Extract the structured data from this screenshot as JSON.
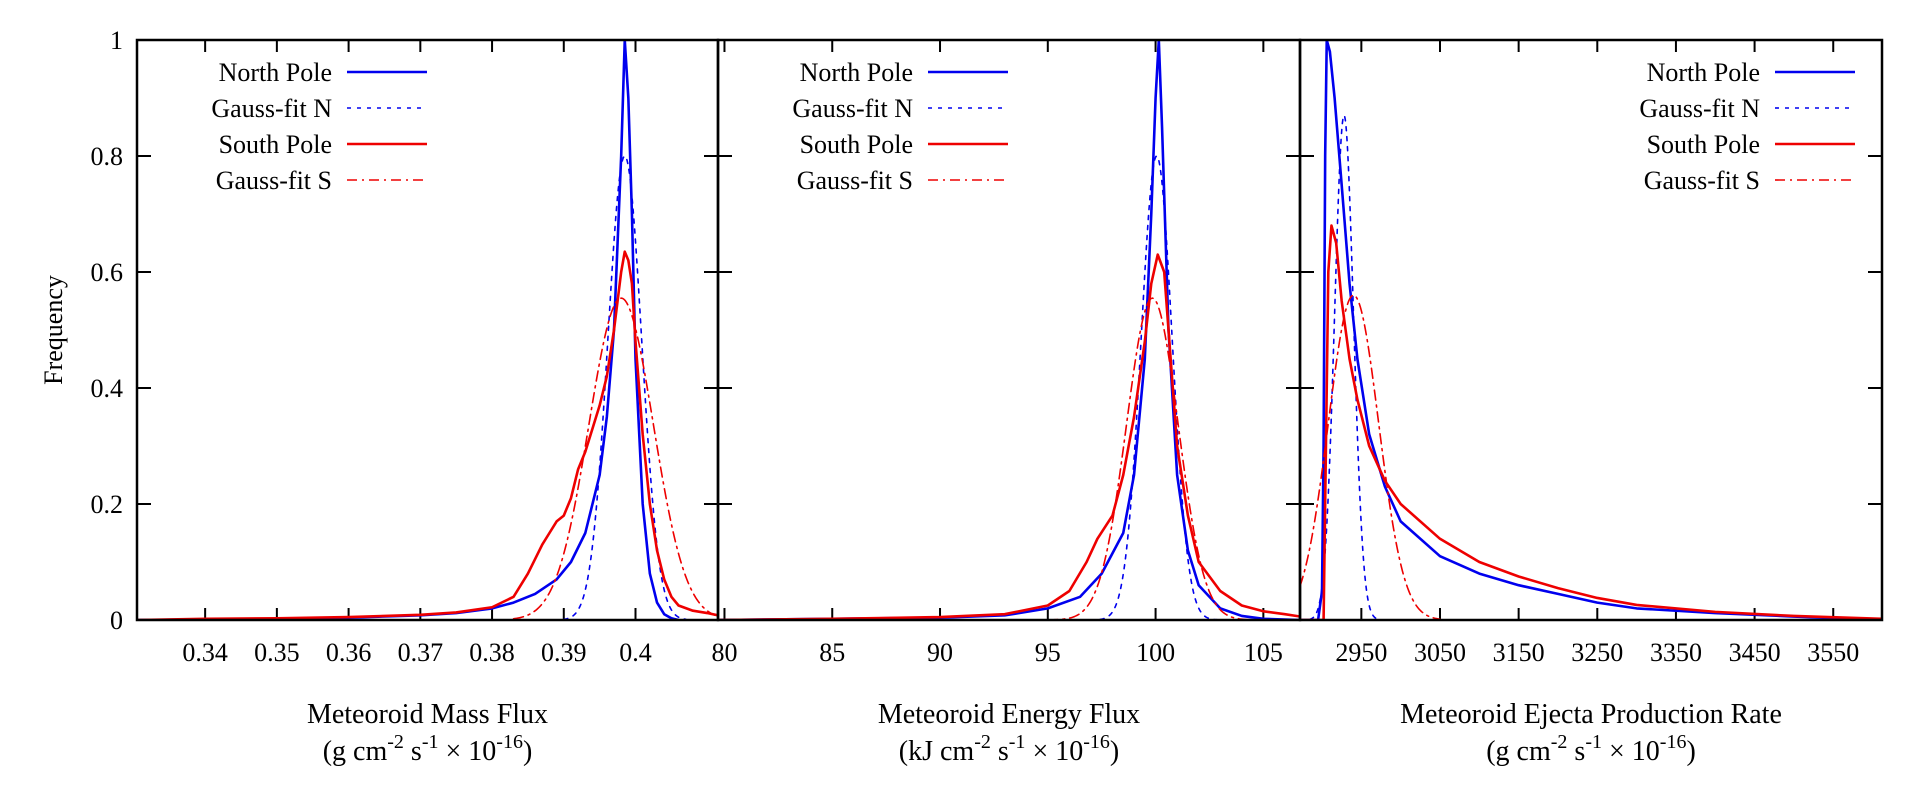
{
  "colors": {
    "north": "#0000ee",
    "south": "#ee0000"
  },
  "chart_data": {
    "type": "line",
    "ylabel": "Frequency",
    "ylim": [
      0,
      1
    ],
    "yticks": [
      {
        "v": 0,
        "label": "0"
      },
      {
        "v": 0.2,
        "label": "0.2"
      },
      {
        "v": 0.4,
        "label": "0.4"
      },
      {
        "v": 0.6,
        "label": "0.6"
      },
      {
        "v": 0.8,
        "label": "0.8"
      },
      {
        "v": 1,
        "label": "1"
      }
    ],
    "panels": [
      {
        "id": "mass",
        "xlabel_line1": "Meteoroid Mass Flux",
        "xlabel_line2": [
          "(g cm",
          "-2",
          " s",
          "-1",
          " × 10",
          "-16",
          ")"
        ],
        "xlim": [
          0.3305,
          0.4115
        ],
        "legend_position": "top-left",
        "xticks": [
          {
            "v": 0.34,
            "label": "0.34"
          },
          {
            "v": 0.35,
            "label": "0.35"
          },
          {
            "v": 0.36,
            "label": "0.36"
          },
          {
            "v": 0.37,
            "label": "0.37"
          },
          {
            "v": 0.38,
            "label": "0.38"
          },
          {
            "v": 0.39,
            "label": "0.39"
          },
          {
            "v": 0.4,
            "label": "0.4"
          }
        ],
        "series": [
          {
            "name": "North Pole",
            "color": "north",
            "dash": "solid",
            "peak": 1.0,
            "points": [
              [
                0.3305,
                0
              ],
              [
                0.34,
                0.001
              ],
              [
                0.35,
                0.002
              ],
              [
                0.36,
                0.004
              ],
              [
                0.37,
                0.008
              ],
              [
                0.375,
                0.012
              ],
              [
                0.38,
                0.02
              ],
              [
                0.383,
                0.03
              ],
              [
                0.386,
                0.045
              ],
              [
                0.389,
                0.07
              ],
              [
                0.391,
                0.1
              ],
              [
                0.393,
                0.15
              ],
              [
                0.395,
                0.25
              ],
              [
                0.396,
                0.35
              ],
              [
                0.397,
                0.5
              ],
              [
                0.3975,
                0.65
              ],
              [
                0.398,
                0.8
              ],
              [
                0.3985,
                1.0
              ],
              [
                0.399,
                0.9
              ],
              [
                0.3995,
                0.7
              ],
              [
                0.4,
                0.45
              ],
              [
                0.401,
                0.2
              ],
              [
                0.402,
                0.08
              ],
              [
                0.403,
                0.03
              ],
              [
                0.404,
                0.01
              ],
              [
                0.405,
                0.003
              ],
              [
                0.406,
                0
              ]
            ]
          },
          {
            "name": "Gauss-fit N",
            "color": "north",
            "dash": "dot",
            "peak": 0.8,
            "gauss": {
              "mu": 0.3985,
              "sigma": 0.00235,
              "amp": 0.8,
              "from": 0.39,
              "to": 0.407
            }
          },
          {
            "name": "South Pole",
            "color": "south",
            "dash": "solid",
            "peak": 0.635,
            "points": [
              [
                0.3305,
                0
              ],
              [
                0.34,
                0.002
              ],
              [
                0.35,
                0.003
              ],
              [
                0.36,
                0.005
              ],
              [
                0.37,
                0.009
              ],
              [
                0.375,
                0.013
              ],
              [
                0.38,
                0.022
              ],
              [
                0.383,
                0.04
              ],
              [
                0.385,
                0.08
              ],
              [
                0.387,
                0.13
              ],
              [
                0.388,
                0.15
              ],
              [
                0.389,
                0.17
              ],
              [
                0.39,
                0.18
              ],
              [
                0.391,
                0.21
              ],
              [
                0.392,
                0.26
              ],
              [
                0.393,
                0.29
              ],
              [
                0.394,
                0.33
              ],
              [
                0.395,
                0.37
              ],
              [
                0.396,
                0.42
              ],
              [
                0.397,
                0.5
              ],
              [
                0.398,
                0.6
              ],
              [
                0.3985,
                0.635
              ],
              [
                0.399,
                0.62
              ],
              [
                0.3995,
                0.58
              ],
              [
                0.4,
                0.48
              ],
              [
                0.401,
                0.32
              ],
              [
                0.402,
                0.2
              ],
              [
                0.403,
                0.12
              ],
              [
                0.404,
                0.07
              ],
              [
                0.405,
                0.04
              ],
              [
                0.406,
                0.025
              ],
              [
                0.408,
                0.016
              ],
              [
                0.41,
                0.012
              ],
              [
                0.4115,
                0.008
              ]
            ]
          },
          {
            "name": "Gauss-fit S",
            "color": "south",
            "dash": "dashdot",
            "peak": 0.55,
            "gauss": {
              "mu": 0.398,
              "sigma": 0.0045,
              "amp": 0.555,
              "from": 0.383,
              "to": 0.411
            }
          }
        ]
      },
      {
        "id": "energy",
        "xlabel_line1": "Meteoroid Energy Flux",
        "xlabel_line2": [
          "(kJ cm",
          "-2",
          " s",
          "-1",
          " × 10",
          "-16",
          ")"
        ],
        "xlim": [
          79.7,
          106.7
        ],
        "legend_position": "top-left",
        "xticks": [
          {
            "v": 80,
            "label": "80"
          },
          {
            "v": 85,
            "label": "85"
          },
          {
            "v": 90,
            "label": "90"
          },
          {
            "v": 95,
            "label": "95"
          },
          {
            "v": 100,
            "label": "100"
          },
          {
            "v": 105,
            "label": "105"
          }
        ],
        "series": [
          {
            "name": "North Pole",
            "color": "north",
            "dash": "solid",
            "peak": 1.0,
            "points": [
              [
                79.7,
                0
              ],
              [
                85,
                0.002
              ],
              [
                90,
                0.004
              ],
              [
                93,
                0.008
              ],
              [
                95,
                0.02
              ],
              [
                96.5,
                0.04
              ],
              [
                97.5,
                0.08
              ],
              [
                98.5,
                0.15
              ],
              [
                99,
                0.25
              ],
              [
                99.5,
                0.45
              ],
              [
                99.8,
                0.7
              ],
              [
                100,
                0.9
              ],
              [
                100.15,
                1.0
              ],
              [
                100.3,
                0.85
              ],
              [
                100.6,
                0.5
              ],
              [
                101,
                0.25
              ],
              [
                101.5,
                0.12
              ],
              [
                102,
                0.06
              ],
              [
                103,
                0.02
              ],
              [
                104,
                0.007
              ],
              [
                105,
                0.002
              ],
              [
                106.7,
                0
              ]
            ]
          },
          {
            "name": "Gauss-fit N",
            "color": "north",
            "dash": "dot",
            "peak": 0.8,
            "gauss": {
              "mu": 100.05,
              "sigma": 0.72,
              "amp": 0.8,
              "from": 96.5,
              "to": 104
            }
          },
          {
            "name": "South Pole",
            "color": "south",
            "dash": "solid",
            "peak": 0.63,
            "points": [
              [
                79.7,
                0
              ],
              [
                85,
                0.002
              ],
              [
                90,
                0.005
              ],
              [
                93,
                0.01
              ],
              [
                95,
                0.025
              ],
              [
                96,
                0.05
              ],
              [
                96.8,
                0.1
              ],
              [
                97.3,
                0.14
              ],
              [
                98,
                0.18
              ],
              [
                98.5,
                0.25
              ],
              [
                99,
                0.35
              ],
              [
                99.5,
                0.48
              ],
              [
                99.8,
                0.58
              ],
              [
                100.1,
                0.63
              ],
              [
                100.4,
                0.6
              ],
              [
                100.7,
                0.45
              ],
              [
                101,
                0.3
              ],
              [
                101.5,
                0.18
              ],
              [
                102,
                0.1
              ],
              [
                103,
                0.05
              ],
              [
                104,
                0.025
              ],
              [
                105,
                0.015
              ],
              [
                106,
                0.01
              ],
              [
                106.7,
                0.006
              ]
            ]
          },
          {
            "name": "Gauss-fit S",
            "color": "south",
            "dash": "dashdot",
            "peak": 0.555,
            "gauss": {
              "mu": 99.85,
              "sigma": 1.2,
              "amp": 0.555,
              "from": 95,
              "to": 105.5
            }
          }
        ]
      },
      {
        "id": "ejecta",
        "xlabel_line1": "Meteoroid Ejecta Production Rate",
        "xlabel_line2": [
          "(g cm",
          "-2",
          " s",
          "-1",
          " × 10",
          "-16",
          ")"
        ],
        "xlim": [
          2872,
          3612
        ],
        "legend_position": "top-right",
        "xticks": [
          {
            "v": 2950,
            "label": "2950"
          },
          {
            "v": 3050,
            "label": "3050"
          },
          {
            "v": 3150,
            "label": "3150"
          },
          {
            "v": 3250,
            "label": "3250"
          },
          {
            "v": 3350,
            "label": "3350"
          },
          {
            "v": 3450,
            "label": "3450"
          },
          {
            "v": 3550,
            "label": "3550"
          }
        ],
        "series": [
          {
            "name": "North Pole",
            "color": "north",
            "dash": "solid",
            "peak": 1.0,
            "points": [
              [
                2872,
                0
              ],
              [
                2895,
                0
              ],
              [
                2900,
                0.05
              ],
              [
                2902,
                0.3
              ],
              [
                2904,
                0.8
              ],
              [
                2906,
                1.0
              ],
              [
                2910,
                0.98
              ],
              [
                2916,
                0.9
              ],
              [
                2925,
                0.75
              ],
              [
                2935,
                0.58
              ],
              [
                2945,
                0.45
              ],
              [
                2960,
                0.32
              ],
              [
                2980,
                0.23
              ],
              [
                3000,
                0.17
              ],
              [
                3050,
                0.11
              ],
              [
                3100,
                0.08
              ],
              [
                3150,
                0.06
              ],
              [
                3200,
                0.045
              ],
              [
                3250,
                0.03
              ],
              [
                3300,
                0.02
              ],
              [
                3400,
                0.012
              ],
              [
                3500,
                0.006
              ],
              [
                3612,
                0
              ]
            ]
          },
          {
            "name": "Gauss-fit N",
            "color": "north",
            "dash": "dot",
            "peak": 0.87,
            "gauss": {
              "mu": 2928,
              "sigma": 12,
              "amp": 0.87,
              "from": 2872,
              "to": 2990
            }
          },
          {
            "name": "South Pole",
            "color": "south",
            "dash": "solid",
            "peak": 0.68,
            "points": [
              [
                2872,
                0
              ],
              [
                2902,
                0
              ],
              [
                2905,
                0.3
              ],
              [
                2908,
                0.6
              ],
              [
                2912,
                0.68
              ],
              [
                2918,
                0.65
              ],
              [
                2925,
                0.55
              ],
              [
                2935,
                0.45
              ],
              [
                2945,
                0.38
              ],
              [
                2960,
                0.3
              ],
              [
                2980,
                0.24
              ],
              [
                3000,
                0.2
              ],
              [
                3050,
                0.14
              ],
              [
                3100,
                0.1
              ],
              [
                3150,
                0.075
              ],
              [
                3200,
                0.055
              ],
              [
                3250,
                0.038
              ],
              [
                3300,
                0.026
              ],
              [
                3400,
                0.014
              ],
              [
                3500,
                0.007
              ],
              [
                3612,
                0.002
              ]
            ]
          },
          {
            "name": "Gauss-fit S",
            "color": "south",
            "dash": "dashdot",
            "peak": 0.56,
            "gauss": {
              "mu": 2940,
              "sigma": 32,
              "amp": 0.56,
              "from": 2872,
              "to": 3050
            }
          }
        ]
      }
    ]
  }
}
